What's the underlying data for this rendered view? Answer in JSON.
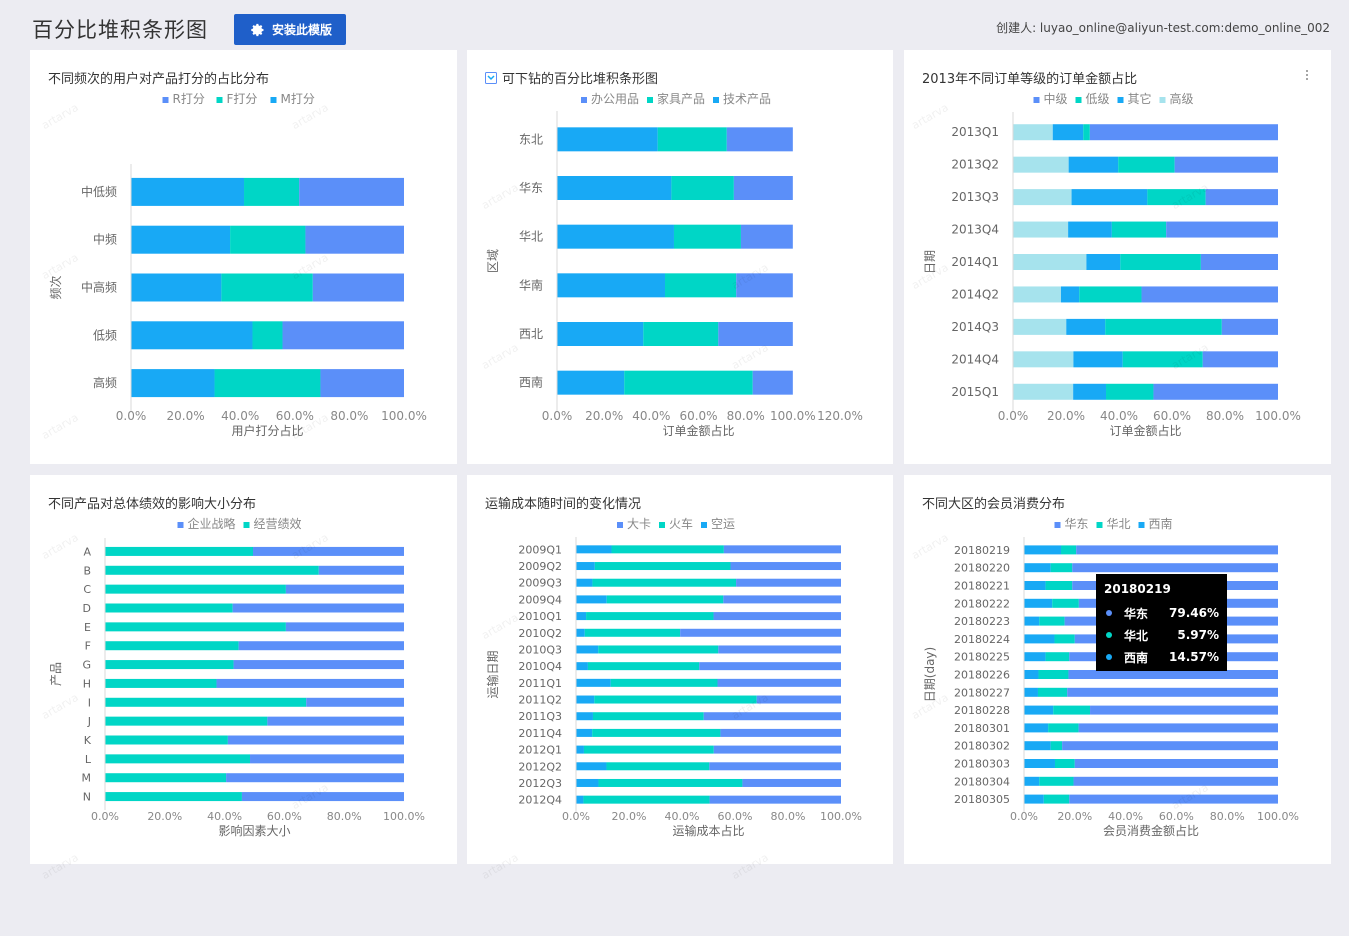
{
  "header": {
    "title": "百分比堆积条形图",
    "install_label": "安装此模版",
    "creator": "创建人: luyao_online@aliyun-test.com:demo_online_002"
  },
  "watermark": "artarva",
  "tooltip": {
    "title": "20180219",
    "rows": [
      {
        "name": "华东",
        "value": "79.46%",
        "color": "#5b8ff9"
      },
      {
        "name": "华北",
        "value": "5.97%",
        "color": "#00d6c6"
      },
      {
        "name": "西南",
        "value": "14.57%",
        "color": "#18a9f5"
      }
    ]
  },
  "chart_data": [
    {
      "type": "bar",
      "title": "不同频次的用户对产品打分的占比分布",
      "legend_position": "top",
      "xlabel": "用户打分占比",
      "ylabel": "频次",
      "xlim": [
        0,
        100
      ],
      "xticks": [
        "0.0%",
        "20.0%",
        "40.0%",
        "60.0%",
        "80.0%",
        "100.0%"
      ],
      "categories": [
        "中低频",
        "中频",
        "中高频",
        "低频",
        "高频"
      ],
      "series": [
        {
          "name": "R打分",
          "color": "#5b8ff9",
          "values": [
            38.4,
            36.1,
            33.4,
            44.5,
            30.6
          ]
        },
        {
          "name": "F打分",
          "color": "#00d6c6",
          "values": [
            20.2,
            27.6,
            33.5,
            11.0,
            38.8
          ]
        },
        {
          "name": "M打分",
          "color": "#18a9f5",
          "values": [
            41.4,
            36.3,
            33.1,
            44.5,
            30.6
          ]
        }
      ],
      "stack_order": [
        2,
        1,
        0
      ]
    },
    {
      "type": "bar",
      "title": "可下钻的百分比堆积条形图",
      "legend_position": "top",
      "xlabel": "订单金额占比",
      "ylabel": "区域",
      "xlim": [
        0,
        120
      ],
      "xticks": [
        "0.0%",
        "20.0%",
        "40.0%",
        "60.0%",
        "80.0%",
        "100.0%",
        "120.0%"
      ],
      "categories": [
        "东北",
        "华东",
        "华北",
        "华南",
        "西北",
        "西南"
      ],
      "series": [
        {
          "name": "办公用品",
          "color": "#5b8ff9",
          "values": [
            28.0,
            25.0,
            22.0,
            24.0,
            31.6,
            17.0
          ]
        },
        {
          "name": "家具产品",
          "color": "#00d6c6",
          "values": [
            29.3,
            26.5,
            28.4,
            30.2,
            31.8,
            54.5
          ]
        },
        {
          "name": "技术产品",
          "color": "#18a9f5",
          "values": [
            42.7,
            48.5,
            49.6,
            45.8,
            36.6,
            28.5
          ]
        }
      ],
      "stack_order": [
        2,
        1,
        0
      ]
    },
    {
      "type": "bar",
      "title": "2013年不同订单等级的订单金额占比",
      "legend_position": "top",
      "xlabel": "订单金额占比",
      "ylabel": "日期",
      "xlim": [
        0,
        100
      ],
      "xticks": [
        "0.0%",
        "20.0%",
        "40.0%",
        "60.0%",
        "80.0%",
        "100.0%"
      ],
      "categories": [
        "2013Q1",
        "2013Q2",
        "2013Q3",
        "2013Q4",
        "2014Q1",
        "2014Q2",
        "2014Q3",
        "2014Q4",
        "2015Q1"
      ],
      "series": [
        {
          "name": "中级",
          "color": "#5b8ff9",
          "values": [
            71.0,
            39.0,
            27.3,
            42.2,
            29.1,
            51.5,
            21.2,
            28.4,
            47.0
          ]
        },
        {
          "name": "低级",
          "color": "#00d6c6",
          "values": [
            2.5,
            21.3,
            22.0,
            20.5,
            30.4,
            23.5,
            44.0,
            30.2,
            17.9
          ]
        },
        {
          "name": "其它",
          "color": "#18a9f5",
          "values": [
            11.5,
            18.7,
            28.6,
            16.5,
            12.8,
            6.9,
            14.7,
            18.6,
            12.4
          ]
        },
        {
          "name": "高级",
          "color": "#a6e3ed",
          "values": [
            15.0,
            21.0,
            22.1,
            20.8,
            27.7,
            18.1,
            20.1,
            22.8,
            22.7
          ]
        }
      ],
      "stack_order": [
        3,
        2,
        1,
        0
      ]
    },
    {
      "type": "bar",
      "title": "不同产品对总体绩效的影响大小分布",
      "legend_position": "top",
      "xlabel": "影响因素大小",
      "ylabel": "产品",
      "xlim": [
        0,
        100
      ],
      "xticks": [
        "0.0%",
        "20.0%",
        "40.0%",
        "60.0%",
        "80.0%",
        "100.0%"
      ],
      "categories": [
        "A",
        "B",
        "C",
        "D",
        "E",
        "F",
        "G",
        "H",
        "I",
        "J",
        "K",
        "L",
        "M",
        "N"
      ],
      "series": [
        {
          "name": "企业战略",
          "color": "#5b8ff9",
          "values": [
            50.5,
            28.5,
            39.5,
            57.3,
            39.5,
            55.3,
            57.0,
            62.7,
            32.7,
            45.7,
            58.9,
            51.5,
            59.5,
            54.2
          ]
        },
        {
          "name": "经营绩效",
          "color": "#00d6c6",
          "values": [
            49.5,
            71.5,
            60.5,
            42.7,
            60.5,
            44.7,
            43.0,
            37.3,
            67.3,
            54.3,
            41.1,
            48.5,
            40.5,
            45.8
          ]
        }
      ],
      "stack_order": [
        1,
        0
      ]
    },
    {
      "type": "bar",
      "title": "运输成本随时间的变化情况",
      "legend_position": "top",
      "xlabel": "运输成本占比",
      "ylabel": "运输日期",
      "xlim": [
        0,
        100
      ],
      "xticks": [
        "0.0%",
        "20.0%",
        "40.0%",
        "60.0%",
        "80.0%",
        "100.0%"
      ],
      "categories": [
        "2009Q1",
        "2009Q2",
        "2009Q3",
        "2009Q4",
        "2010Q1",
        "2010Q2",
        "2010Q3",
        "2010Q4",
        "2011Q1",
        "2011Q2",
        "2011Q3",
        "2011Q4",
        "2012Q1",
        "2012Q2",
        "2012Q3",
        "2012Q4"
      ],
      "series": [
        {
          "name": "大卡",
          "color": "#5b8ff9",
          "values": [
            44.2,
            41.7,
            39.6,
            44.4,
            48.1,
            60.7,
            46.3,
            53.5,
            46.6,
            31.8,
            51.8,
            45.5,
            48.0,
            49.7,
            37.2,
            49.6
          ]
        },
        {
          "name": "火车",
          "color": "#00d6c6",
          "values": [
            42.4,
            51.2,
            54.2,
            44.0,
            48.1,
            36.0,
            45.3,
            42.0,
            40.3,
            61.3,
            41.8,
            48.4,
            49.0,
            38.8,
            54.3,
            47.6
          ]
        },
        {
          "name": "空运",
          "color": "#18a9f5",
          "values": [
            13.4,
            7.1,
            6.2,
            11.6,
            3.8,
            3.3,
            8.4,
            4.5,
            13.1,
            6.9,
            6.4,
            6.1,
            3.0,
            11.5,
            8.5,
            2.8
          ]
        }
      ],
      "stack_order": [
        2,
        1,
        0
      ]
    },
    {
      "type": "bar",
      "title": "不同大区的会员消费分布",
      "legend_position": "top",
      "xlabel": "会员消费金额占比",
      "ylabel": "日期(day)",
      "xlim": [
        0,
        100
      ],
      "xticks": [
        "0.0%",
        "20.0%",
        "40.0%",
        "60.0%",
        "80.0%",
        "100.0%"
      ],
      "categories": [
        "20180219",
        "20180220",
        "20180221",
        "20180222",
        "20180223",
        "20180224",
        "20180225",
        "20180226",
        "20180227",
        "20180228",
        "20180301",
        "20180302",
        "20180303",
        "20180304",
        "20180305"
      ],
      "series": [
        {
          "name": "华东",
          "color": "#5b8ff9",
          "values": [
            79.46,
            81.0,
            81.0,
            78.4,
            84.0,
            80.0,
            82.2,
            82.5,
            83.0,
            74.0,
            78.5,
            85.0,
            80.0,
            80.5,
            82.2
          ]
        },
        {
          "name": "华北",
          "color": "#00d6c6",
          "values": [
            5.97,
            8.5,
            10.5,
            10.5,
            10.0,
            8.0,
            9.3,
            11.8,
            11.5,
            14.5,
            12.0,
            4.5,
            7.8,
            13.5,
            10.0
          ]
        },
        {
          "name": "西南",
          "color": "#18a9f5",
          "values": [
            14.57,
            10.5,
            8.5,
            11.1,
            6.0,
            12.0,
            8.5,
            5.7,
            5.5,
            11.5,
            9.5,
            10.5,
            12.2,
            6.0,
            7.8
          ]
        }
      ],
      "stack_order": [
        2,
        1,
        0
      ]
    }
  ]
}
